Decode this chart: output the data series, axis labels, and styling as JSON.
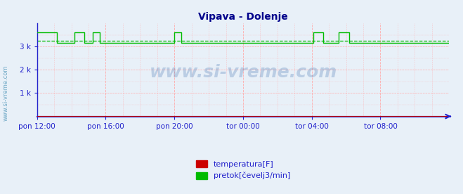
{
  "title": "Vipava - Dolenje",
  "title_color": "#00008B",
  "bg_color": "#e8f0f8",
  "ylim": [
    0,
    4000
  ],
  "yticks": [
    1000,
    2000,
    3000
  ],
  "ytick_labels": [
    "1 k",
    "2 k",
    "3 k"
  ],
  "xtick_labels": [
    "pon 12:00",
    "pon 16:00",
    "pon 20:00",
    "tor 00:00",
    "tor 04:00",
    "tor 08:00"
  ],
  "xtick_positions": [
    0,
    48,
    96,
    144,
    192,
    240
  ],
  "total_points": 289,
  "baseline_flow": 3150,
  "spike_value": 3620,
  "mean_flow": 3250,
  "spike_segments": [
    [
      0,
      14
    ],
    [
      26,
      33
    ],
    [
      39,
      44
    ],
    [
      96,
      101
    ],
    [
      193,
      200
    ],
    [
      211,
      218
    ]
  ],
  "temp_value": 5,
  "flow_color": "#00bb00",
  "temp_color": "#cc0000",
  "grid_color": "#ffaaaa",
  "axis_color": "#2222cc",
  "tick_color": "#2222cc",
  "watermark_center": "www.si-vreme.com",
  "watermark_side": "www.si-vreme.com",
  "legend_labels": [
    "temperatura[F]",
    "pretok[čevelj3/min]"
  ],
  "legend_colors": [
    "#cc0000",
    "#00bb00"
  ],
  "figwidth": 6.59,
  "figheight": 2.76,
  "dpi": 100
}
